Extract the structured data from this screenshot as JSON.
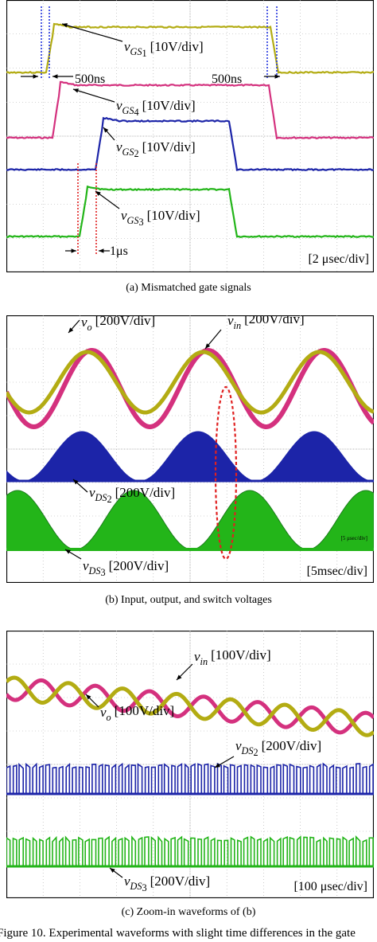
{
  "figure_title": "Figure 10. Experimental waveforms with slight time differences in the gate",
  "colors": {
    "yellow": "#b3ac13",
    "magenta": "#d4317e",
    "blue": "#1c24a8",
    "green": "#23b519",
    "dark_green": "#1b7d1b",
    "marker_blue": "#2233dd",
    "marker_red": "#e02020",
    "grid": "#aaaaaa"
  },
  "panel_a": {
    "caption": "(a) Mismatched gate signals",
    "scale": "[2 μsec/div]",
    "labels": {
      "vgs1": {
        "sym": "v",
        "sub": "GS",
        "idx": "1",
        "unit": "[10V/div]"
      },
      "vgs4": {
        "sym": "v",
        "sub": "GS",
        "idx": "4",
        "unit": "[10V/div]"
      },
      "vgs2": {
        "sym": "v",
        "sub": "GS",
        "idx": "2",
        "unit": "[10V/div]"
      },
      "vgs3": {
        "sym": "v",
        "sub": "GS",
        "idx": "3",
        "unit": "[10V/div]"
      }
    },
    "delay_left": "500ns",
    "delay_right": "500ns",
    "delay_mid": "1μs"
  },
  "panel_b": {
    "caption": "(b) Input, output, and switch voltages",
    "scale": "[5msec/div]",
    "inset_scale": "[5 μsec/div]",
    "labels": {
      "vo": {
        "sym": "v",
        "sub": "o",
        "idx": "",
        "unit": "[200V/div]"
      },
      "vin": {
        "sym": "v",
        "sub": "in",
        "idx": "",
        "unit": "[200V/div]"
      },
      "vds2": {
        "sym": "v",
        "sub": "DS",
        "idx": "2",
        "unit": "[200V/div]"
      },
      "vds3": {
        "sym": "v",
        "sub": "DS",
        "idx": "3",
        "unit": "[200V/div]"
      }
    }
  },
  "panel_c": {
    "caption": "(c) Zoom-in waveforms of (b)",
    "scale": "[100 μsec/div]",
    "labels": {
      "vin": {
        "sym": "v",
        "sub": "in",
        "idx": "",
        "unit": "[100V/div]"
      },
      "vo": {
        "sym": "v",
        "sub": "o",
        "idx": "",
        "unit": "[100V/div]"
      },
      "vds2": {
        "sym": "v",
        "sub": "DS",
        "idx": "2",
        "unit": "[200V/div]"
      },
      "vds3": {
        "sym": "v",
        "sub": "DS",
        "idx": "3",
        "unit": "[200V/div]"
      }
    }
  }
}
